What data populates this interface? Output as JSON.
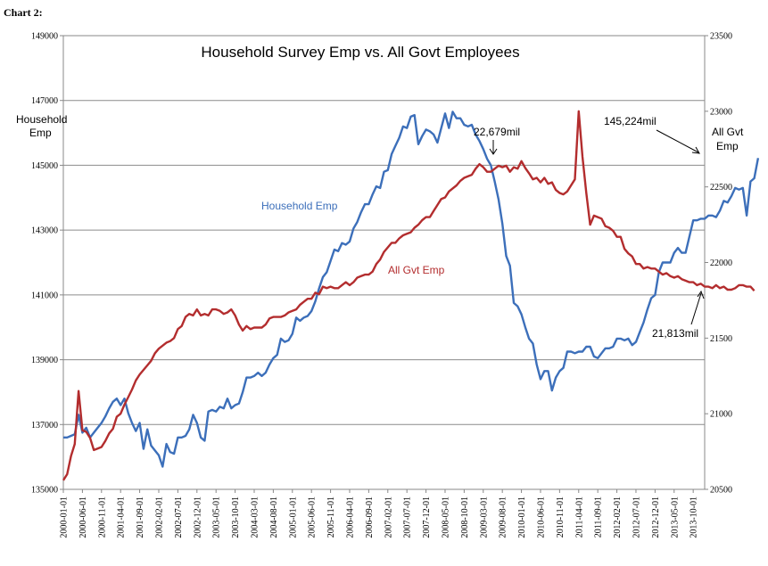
{
  "caption": "Chart 2:",
  "chart_data": {
    "type": "line",
    "title": "Household Survey Emp vs. All Govt Employees",
    "left_axis": {
      "label_lines": [
        "Household",
        "Emp"
      ],
      "range": [
        135000,
        149000
      ],
      "ticks": [
        135000,
        137000,
        139000,
        141000,
        143000,
        145000,
        147000,
        149000
      ],
      "tick_labels": [
        "135000",
        "137000",
        "139000",
        "141000",
        "143000",
        "145000",
        "147000",
        "149000"
      ]
    },
    "right_axis": {
      "label_lines": [
        "All Gvt",
        "Emp"
      ],
      "range": [
        20500,
        23500
      ],
      "ticks": [
        20500,
        21000,
        21500,
        22000,
        22500,
        23000,
        23500
      ],
      "tick_labels": [
        "20500",
        "21000",
        "21500",
        "22000",
        "22500",
        "23000",
        "23500"
      ]
    },
    "x_axis": {
      "start": "2000-01",
      "end": "2014-01",
      "tick_labels": [
        "2000-01-01",
        "2000-06-01",
        "2000-11-01",
        "2001-04-01",
        "2001-09-01",
        "2002-02-01",
        "2002-07-01",
        "2002-12-01",
        "2003-05-01",
        "2003-10-01",
        "2004-03-01",
        "2004-08-01",
        "2005-01-01",
        "2005-06-01",
        "2005-11-01",
        "2006-04-01",
        "2006-09-01",
        "2007-02-01",
        "2007-07-01",
        "2007-12-01",
        "2008-05-01",
        "2008-10-01",
        "2009-03-01",
        "2009-08-01",
        "2010-01-01",
        "2010-06-01",
        "2010-11-01",
        "2011-04-01",
        "2011-09-01",
        "2012-02-01",
        "2012-07-01",
        "2012-12-01",
        "2013-05-01",
        "2013-10-01"
      ]
    },
    "grid": "horizontal",
    "series": [
      {
        "name": "Household Emp",
        "axis": "left",
        "color": "#3c6fba",
        "start": "2000-01",
        "values": [
          136600,
          136600,
          136650,
          136700,
          137300,
          136750,
          136900,
          136600,
          136750,
          136900,
          137050,
          137250,
          137500,
          137700,
          137800,
          137600,
          137800,
          137350,
          137050,
          136800,
          137050,
          136250,
          136850,
          136350,
          136200,
          136050,
          135700,
          136400,
          136150,
          136100,
          136600,
          136600,
          136650,
          136850,
          137300,
          137050,
          136600,
          136500,
          137400,
          137450,
          137400,
          137550,
          137500,
          137800,
          137500,
          137600,
          137650,
          138000,
          138450,
          138450,
          138500,
          138600,
          138500,
          138600,
          138850,
          139050,
          139150,
          139650,
          139550,
          139600,
          139800,
          140300,
          140200,
          140300,
          140350,
          140500,
          140800,
          141200,
          141550,
          141700,
          142050,
          142400,
          142350,
          142600,
          142550,
          142650,
          143050,
          143250,
          143550,
          143800,
          143800,
          144100,
          144350,
          144300,
          144800,
          144850,
          145350,
          145600,
          145850,
          146200,
          146150,
          146500,
          146550,
          145650,
          145900,
          146100,
          146050,
          145950,
          145700,
          146150,
          146600,
          146150,
          146650,
          146450,
          146450,
          146250,
          146200,
          146250,
          145950,
          145750,
          145500,
          145200,
          145000,
          144500,
          143950,
          143200,
          142200,
          141900,
          140750,
          140650,
          140400,
          140000,
          139650,
          139500,
          138850,
          138400,
          138650,
          138650,
          138050,
          138450,
          138650,
          138750,
          139250,
          139250,
          139200,
          139250,
          139250,
          139400,
          139400,
          139100,
          139050,
          139200,
          139350,
          139350,
          139400,
          139650,
          139650,
          139600,
          139650,
          139450,
          139550,
          139850,
          140150,
          140550,
          140900,
          141000,
          141700,
          142000,
          142000,
          142000,
          142300,
          142450,
          142300,
          142300,
          142800,
          143300,
          143300,
          143350,
          143350,
          143450,
          143450,
          143400,
          143600,
          143900,
          143850,
          144050,
          144300,
          144250,
          144300,
          143450,
          144500,
          144600,
          145224
        ]
      },
      {
        "name": "All Gvt Emp",
        "axis": "right",
        "color": "#b32d2e",
        "start": "2000-01",
        "values": [
          20560,
          20600,
          20720,
          20800,
          21150,
          20890,
          20880,
          20840,
          20760,
          20770,
          20780,
          20820,
          20870,
          20900,
          20980,
          21000,
          21060,
          21110,
          21160,
          21220,
          21260,
          21290,
          21320,
          21350,
          21400,
          21430,
          21450,
          21470,
          21480,
          21500,
          21560,
          21580,
          21640,
          21660,
          21650,
          21690,
          21650,
          21660,
          21650,
          21690,
          21690,
          21680,
          21660,
          21670,
          21690,
          21650,
          21590,
          21550,
          21580,
          21560,
          21570,
          21570,
          21570,
          21590,
          21630,
          21640,
          21640,
          21640,
          21650,
          21670,
          21680,
          21690,
          21720,
          21740,
          21760,
          21760,
          21800,
          21790,
          21840,
          21830,
          21840,
          21830,
          21830,
          21850,
          21870,
          21850,
          21870,
          21900,
          21910,
          21920,
          21920,
          21940,
          21990,
          22020,
          22070,
          22100,
          22130,
          22130,
          22160,
          22180,
          22190,
          22200,
          22230,
          22250,
          22280,
          22300,
          22300,
          22340,
          22380,
          22420,
          22430,
          22470,
          22490,
          22510,
          22540,
          22560,
          22570,
          22580,
          22620,
          22650,
          22630,
          22600,
          22600,
          22620,
          22640,
          22630,
          22640,
          22600,
          22630,
          22620,
          22670,
          22625,
          22590,
          22550,
          22560,
          22530,
          22560,
          22520,
          22530,
          22480,
          22460,
          22450,
          22470,
          22510,
          22550,
          23000,
          22700,
          22460,
          22250,
          22310,
          22300,
          22290,
          22240,
          22230,
          22210,
          22170,
          22170,
          22090,
          22060,
          22040,
          21990,
          21990,
          21960,
          21970,
          21960,
          21960,
          21940,
          21920,
          21930,
          21910,
          21900,
          21910,
          21890,
          21880,
          21870,
          21870,
          21850,
          21860,
          21840,
          21840,
          21830,
          21850,
          21830,
          21840,
          21820,
          21820,
          21830,
          21850,
          21850,
          21840,
          21840,
          21813
        ]
      }
    ],
    "annotations": [
      {
        "text": "Household Emp",
        "color": "#3c6fba"
      },
      {
        "text": "All Gvt Emp",
        "color": "#b32d2e"
      },
      {
        "text": "22,679mil",
        "series": "All Gvt Emp"
      },
      {
        "text": "145,224mil",
        "series": "Household Emp"
      },
      {
        "text": "21,813mil",
        "series": "All Gvt Emp"
      }
    ]
  }
}
